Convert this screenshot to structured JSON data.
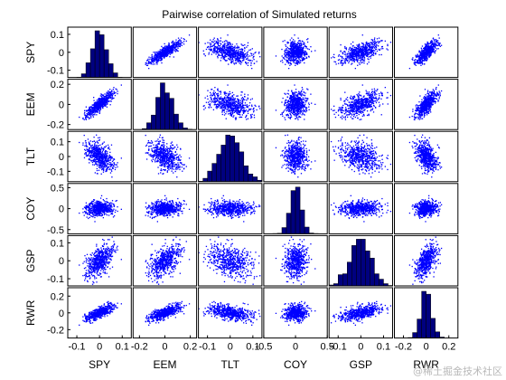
{
  "watermark": "@稀土掘金技术社区",
  "chart_data": {
    "type": "scatter-matrix",
    "title": "Pairwise correlation of Simulated returns",
    "variables": [
      "SPY",
      "EEM",
      "TLT",
      "COY",
      "GSP",
      "RWR"
    ],
    "grid": false,
    "colors": {
      "points": "#0000ff",
      "bars": "#000080",
      "axes": "#000000"
    },
    "diagonal": "histogram",
    "off_diagonal": "scatter",
    "spread": [
      0.03,
      0.06,
      0.05,
      0.085,
      0.045,
      0.045
    ],
    "correlation": [
      [
        1.0,
        0.85,
        -0.5,
        0.1,
        0.55,
        0.75
      ],
      [
        0.85,
        1.0,
        -0.45,
        0.1,
        0.5,
        0.7
      ],
      [
        -0.5,
        -0.45,
        1.0,
        -0.05,
        -0.3,
        -0.4
      ],
      [
        0.1,
        0.1,
        -0.05,
        1.0,
        0.05,
        0.08
      ],
      [
        0.55,
        0.5,
        -0.3,
        0.05,
        1.0,
        0.5
      ],
      [
        0.75,
        0.7,
        -0.4,
        0.08,
        0.5,
        1.0
      ]
    ],
    "y_axes": [
      {
        "name": "SPY",
        "ticks": [
          0.1,
          0,
          -0.1
        ],
        "tick_labels": [
          "0.1",
          "0",
          "-0.1"
        ],
        "range": [
          -0.14,
          0.14
        ]
      },
      {
        "name": "EEM",
        "ticks": [
          0.2,
          0,
          -0.2
        ],
        "tick_labels": [
          "0.2",
          "0",
          "-0.2"
        ],
        "range": [
          -0.25,
          0.25
        ]
      },
      {
        "name": "TLT",
        "ticks": [
          0.1,
          0,
          -0.1
        ],
        "tick_labels": [
          "0.1",
          "0",
          "-0.1"
        ],
        "range": [
          -0.17,
          0.17
        ]
      },
      {
        "name": "COY",
        "ticks": [
          0.5,
          0,
          -0.5
        ],
        "tick_labels": [
          "0.5",
          "0",
          "-0.5"
        ],
        "range": [
          -0.6,
          0.6
        ]
      },
      {
        "name": "GSP",
        "ticks": [
          0.1,
          0,
          -0.1
        ],
        "tick_labels": [
          "0.1",
          "0",
          "-0.1"
        ],
        "range": [
          -0.14,
          0.14
        ]
      },
      {
        "name": "RWR",
        "ticks": [
          0.2,
          0,
          -0.2
        ],
        "tick_labels": [
          "0.2",
          "0",
          "-0.2"
        ],
        "range": [
          -0.3,
          0.3
        ]
      }
    ],
    "x_axes": [
      {
        "name": "SPY",
        "ticks": [
          -0.1,
          0,
          0.1
        ],
        "tick_labels": [
          "-0.1",
          "0",
          "0.1"
        ],
        "range": [
          -0.14,
          0.14
        ]
      },
      {
        "name": "EEM",
        "ticks": [
          -0.2,
          0,
          0.2
        ],
        "tick_labels": [
          "-0.2",
          "0",
          "0.2"
        ],
        "range": [
          -0.25,
          0.25
        ]
      },
      {
        "name": "TLT",
        "ticks": [
          -0.1,
          0,
          0.1
        ],
        "tick_labels": [
          "-0.1",
          "0",
          "0.1"
        ],
        "range": [
          -0.14,
          0.14
        ]
      },
      {
        "name": "COY",
        "ticks": [
          -0.5,
          0,
          0.5
        ],
        "tick_labels": [
          "-0.5",
          "0",
          "0.5"
        ],
        "range": [
          -0.5,
          0.5
        ]
      },
      {
        "name": "GSP",
        "ticks": [
          -0.1,
          0,
          0.1
        ],
        "tick_labels": [
          "-0.1",
          "0",
          "0.1"
        ],
        "range": [
          -0.14,
          0.14
        ]
      },
      {
        "name": "RWR",
        "ticks": [
          -0.2,
          0,
          0.2
        ],
        "tick_labels": [
          "-0.2",
          "0",
          "0.2"
        ],
        "range": [
          -0.28,
          0.28
        ]
      }
    ]
  }
}
